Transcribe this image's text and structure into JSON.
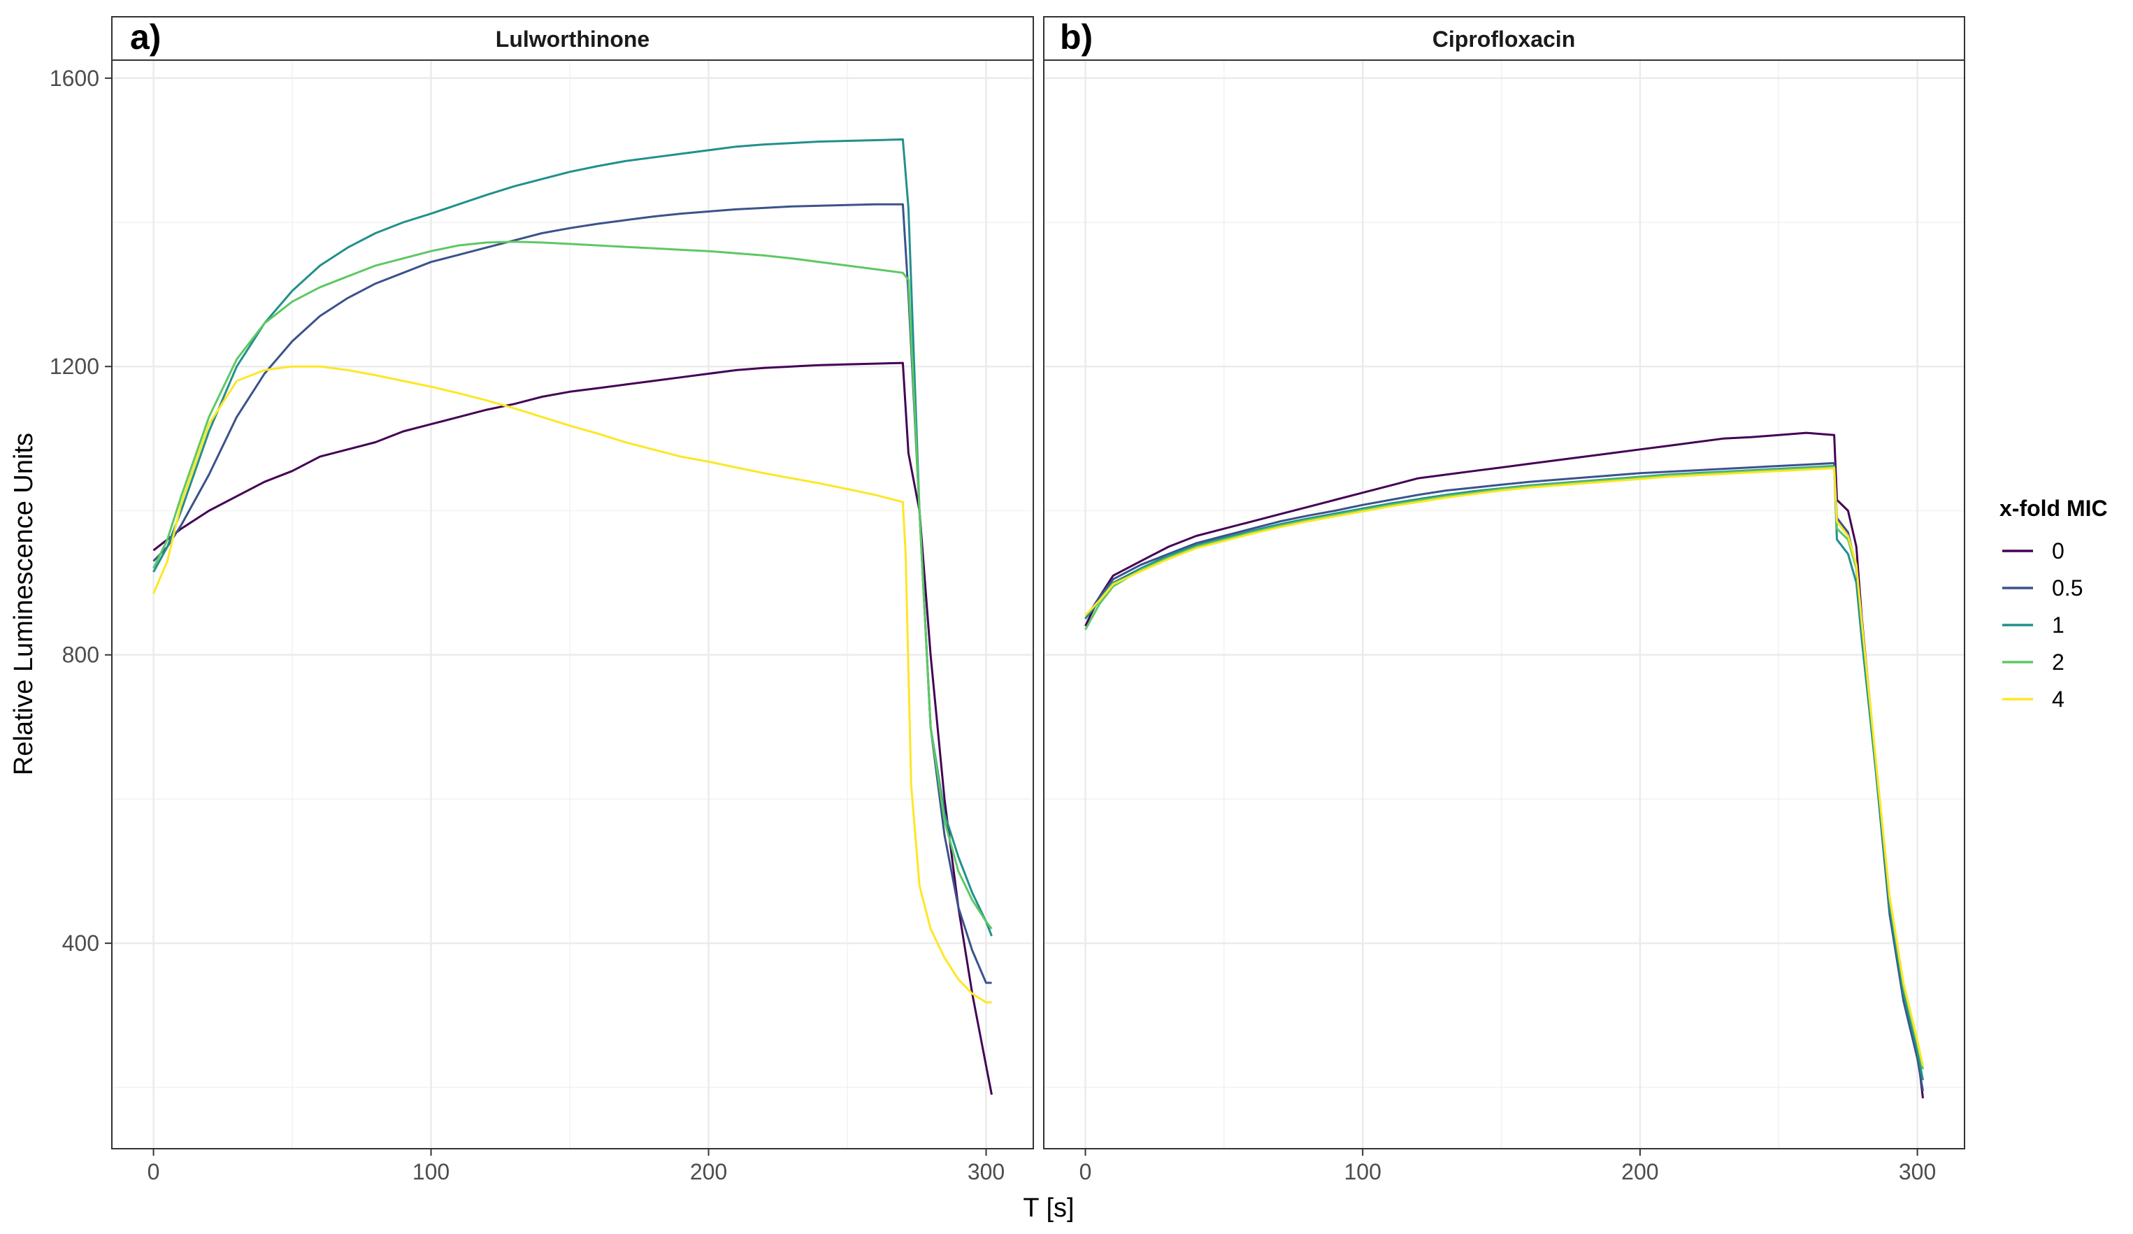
{
  "chart_data": {
    "type": "line",
    "xlabel": "T [s]",
    "ylabel": "Relative Luminescence Units",
    "xlim": [
      -15,
      317
    ],
    "ylim": [
      115,
      1625
    ],
    "x_ticks": [
      0,
      100,
      200,
      300
    ],
    "y_ticks": [
      400,
      800,
      1200,
      1600
    ],
    "grid": true,
    "legend": {
      "title": "x-fold MIC",
      "position": "right",
      "entries": [
        "0",
        "0.5",
        "1",
        "2",
        "4"
      ]
    },
    "colors": {
      "0": "#440154",
      "0.5": "#3b528b",
      "1": "#21908c",
      "2": "#5dc863",
      "4": "#fde725"
    },
    "panels": [
      {
        "tag": "a)",
        "title": "Lulworthinone",
        "series": [
          {
            "name": "0",
            "x": [
              0,
              5,
              10,
              20,
              30,
              40,
              50,
              60,
              70,
              80,
              90,
              100,
              110,
              120,
              130,
              140,
              150,
              160,
              170,
              180,
              190,
              200,
              210,
              220,
              230,
              240,
              250,
              260,
              270,
              272,
              276,
              280,
              285,
              290,
              295,
              300,
              302
            ],
            "y": [
              945,
              960,
              975,
              1000,
              1020,
              1040,
              1055,
              1075,
              1085,
              1095,
              1110,
              1120,
              1130,
              1140,
              1148,
              1158,
              1165,
              1170,
              1175,
              1180,
              1185,
              1190,
              1195,
              1198,
              1200,
              1202,
              1203,
              1204,
              1205,
              1080,
              1000,
              800,
              600,
              450,
              330,
              230,
              190
            ]
          },
          {
            "name": "0.5",
            "x": [
              0,
              5,
              10,
              20,
              30,
              40,
              50,
              60,
              70,
              80,
              90,
              100,
              110,
              120,
              130,
              140,
              150,
              160,
              170,
              180,
              190,
              200,
              210,
              220,
              230,
              240,
              250,
              260,
              270,
              272,
              276,
              280,
              285,
              290,
              295,
              300,
              302
            ],
            "y": [
              930,
              950,
              980,
              1050,
              1130,
              1190,
              1235,
              1270,
              1295,
              1315,
              1330,
              1345,
              1355,
              1365,
              1375,
              1385,
              1392,
              1398,
              1403,
              1408,
              1412,
              1415,
              1418,
              1420,
              1422,
              1423,
              1424,
              1425,
              1425,
              1300,
              1000,
              700,
              550,
              450,
              390,
              345,
              345
            ]
          },
          {
            "name": "1",
            "x": [
              0,
              5,
              10,
              20,
              30,
              40,
              50,
              60,
              70,
              80,
              90,
              100,
              110,
              120,
              130,
              140,
              150,
              160,
              170,
              180,
              190,
              200,
              210,
              220,
              230,
              240,
              250,
              260,
              270,
              272,
              276,
              280,
              285,
              290,
              295,
              300,
              302
            ],
            "y": [
              915,
              950,
              1000,
              1110,
              1200,
              1260,
              1305,
              1340,
              1365,
              1385,
              1400,
              1412,
              1425,
              1438,
              1450,
              1460,
              1470,
              1478,
              1485,
              1490,
              1495,
              1500,
              1505,
              1508,
              1510,
              1512,
              1513,
              1514,
              1515,
              1420,
              1000,
              700,
              580,
              520,
              470,
              430,
              410
            ]
          },
          {
            "name": "2",
            "x": [
              0,
              5,
              10,
              20,
              30,
              40,
              50,
              60,
              70,
              80,
              90,
              100,
              110,
              120,
              130,
              140,
              150,
              160,
              170,
              180,
              190,
              200,
              210,
              220,
              230,
              240,
              250,
              260,
              270,
              272,
              276,
              280,
              285,
              290,
              295,
              300,
              302
            ],
            "y": [
              920,
              960,
              1020,
              1130,
              1210,
              1260,
              1290,
              1310,
              1325,
              1340,
              1350,
              1360,
              1368,
              1372,
              1373,
              1372,
              1370,
              1368,
              1366,
              1364,
              1362,
              1360,
              1357,
              1354,
              1350,
              1345,
              1340,
              1335,
              1330,
              1320,
              1000,
              700,
              570,
              500,
              460,
              430,
              420
            ]
          },
          {
            "name": "4",
            "x": [
              0,
              5,
              10,
              20,
              30,
              40,
              50,
              60,
              70,
              80,
              90,
              100,
              110,
              120,
              130,
              140,
              150,
              160,
              170,
              180,
              190,
              200,
              210,
              220,
              230,
              240,
              250,
              260,
              270,
              271,
              273,
              276,
              280,
              285,
              290,
              295,
              300,
              302
            ],
            "y": [
              885,
              930,
              1010,
              1120,
              1180,
              1195,
              1200,
              1200,
              1195,
              1188,
              1180,
              1172,
              1163,
              1153,
              1142,
              1130,
              1118,
              1107,
              1095,
              1085,
              1075,
              1068,
              1060,
              1052,
              1045,
              1038,
              1030,
              1022,
              1012,
              940,
              620,
              480,
              420,
              380,
              350,
              330,
              318,
              318
            ]
          }
        ]
      },
      {
        "tag": "b)",
        "title": "Ciprofloxacin",
        "series": [
          {
            "name": "0",
            "x": [
              0,
              5,
              10,
              20,
              30,
              40,
              50,
              60,
              70,
              80,
              90,
              100,
              110,
              120,
              130,
              140,
              150,
              160,
              170,
              180,
              190,
              200,
              210,
              220,
              230,
              240,
              250,
              260,
              270,
              271,
              275,
              278,
              280,
              285,
              290,
              295,
              300,
              302
            ],
            "y": [
              840,
              880,
              910,
              930,
              950,
              965,
              975,
              985,
              995,
              1005,
              1015,
              1025,
              1035,
              1045,
              1050,
              1055,
              1060,
              1065,
              1070,
              1075,
              1080,
              1085,
              1090,
              1095,
              1100,
              1102,
              1105,
              1108,
              1105,
              1015,
              1000,
              950,
              850,
              650,
              450,
              330,
              250,
              185
            ]
          },
          {
            "name": "0.5",
            "x": [
              0,
              5,
              10,
              20,
              30,
              40,
              50,
              60,
              70,
              80,
              90,
              100,
              110,
              120,
              130,
              140,
              150,
              160,
              170,
              180,
              190,
              200,
              210,
              220,
              230,
              240,
              250,
              260,
              270,
              271,
              275,
              278,
              280,
              285,
              290,
              295,
              300,
              302
            ],
            "y": [
              850,
              880,
              905,
              925,
              940,
              955,
              965,
              975,
              985,
              993,
              1000,
              1008,
              1015,
              1022,
              1028,
              1032,
              1036,
              1040,
              1043,
              1046,
              1049,
              1052,
              1054,
              1056,
              1058,
              1060,
              1062,
              1064,
              1066,
              990,
              970,
              920,
              830,
              640,
              440,
              320,
              240,
              195
            ]
          },
          {
            "name": "1",
            "x": [
              0,
              5,
              10,
              20,
              30,
              40,
              50,
              60,
              70,
              80,
              90,
              100,
              110,
              120,
              130,
              140,
              150,
              160,
              170,
              180,
              190,
              200,
              210,
              220,
              230,
              240,
              250,
              260,
              270,
              271,
              275,
              278,
              280,
              285,
              290,
              295,
              300,
              302
            ],
            "y": [
              850,
              875,
              900,
              920,
              938,
              952,
              962,
              972,
              981,
              989,
              996,
              1003,
              1010,
              1016,
              1022,
              1027,
              1031,
              1035,
              1038,
              1041,
              1044,
              1047,
              1050,
              1052,
              1054,
              1056,
              1058,
              1060,
              1062,
              960,
              940,
              900,
              820,
              640,
              450,
              330,
              250,
              210
            ]
          },
          {
            "name": "2",
            "x": [
              0,
              5,
              10,
              20,
              30,
              40,
              50,
              60,
              70,
              80,
              90,
              100,
              110,
              120,
              130,
              140,
              150,
              160,
              170,
              180,
              190,
              200,
              210,
              220,
              230,
              240,
              250,
              260,
              270,
              271,
              275,
              278,
              280,
              285,
              290,
              295,
              300,
              302
            ],
            "y": [
              835,
              870,
              895,
              918,
              935,
              950,
              960,
              970,
              979,
              987,
              994,
              1001,
              1008,
              1014,
              1020,
              1025,
              1030,
              1034,
              1037,
              1040,
              1043,
              1046,
              1049,
              1051,
              1053,
              1055,
              1057,
              1059,
              1061,
              975,
              960,
              920,
              840,
              650,
              460,
              340,
              260,
              225
            ]
          },
          {
            "name": "4",
            "x": [
              0,
              5,
              10,
              20,
              30,
              40,
              50,
              60,
              70,
              80,
              90,
              100,
              110,
              120,
              130,
              140,
              150,
              160,
              170,
              180,
              190,
              200,
              210,
              220,
              230,
              240,
              250,
              260,
              270,
              271,
              275,
              278,
              280,
              285,
              290,
              295,
              300,
              302
            ],
            "y": [
              855,
              875,
              898,
              916,
              933,
              948,
              958,
              968,
              977,
              985,
              992,
              999,
              1006,
              1012,
              1018,
              1023,
              1028,
              1032,
              1035,
              1038,
              1041,
              1044,
              1047,
              1049,
              1051,
              1053,
              1055,
              1057,
              1059,
              985,
              965,
              925,
              845,
              655,
              465,
              345,
              265,
              230
            ]
          }
        ]
      }
    ]
  }
}
